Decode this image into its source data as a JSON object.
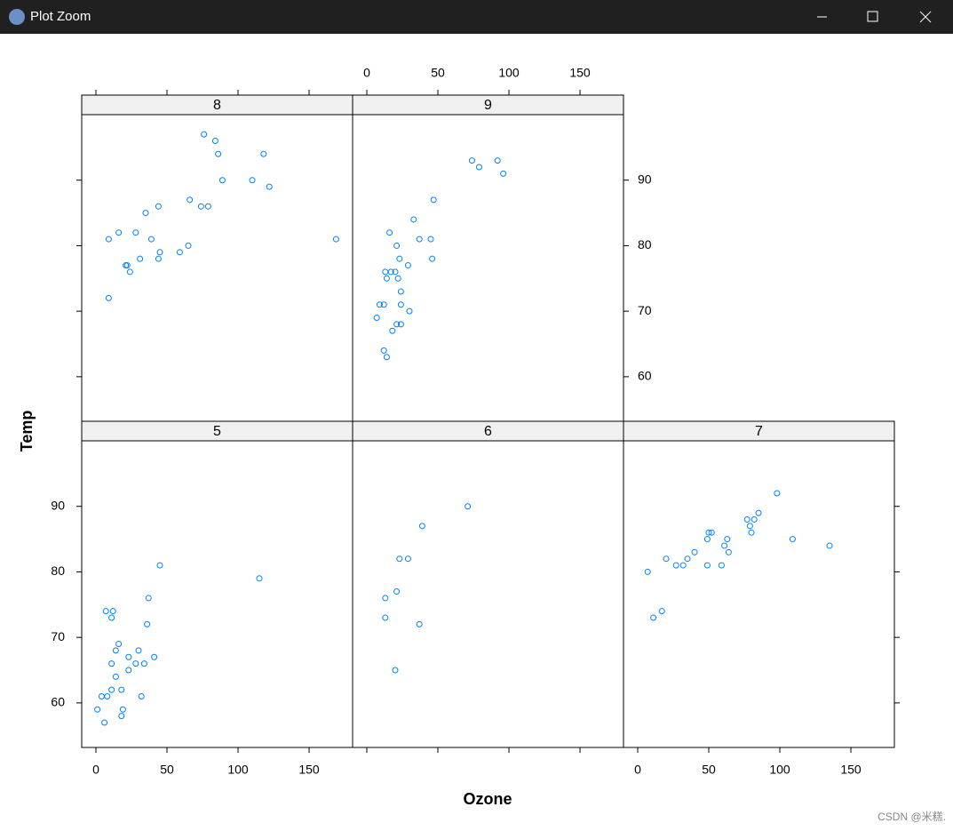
{
  "window": {
    "title": "Plot Zoom",
    "watermark": "CSDN @米糕."
  },
  "chart_data": {
    "type": "scatter",
    "xlabel": "Ozone",
    "ylabel": "Temp",
    "color": "#0080ff",
    "xlim": [
      -10,
      180.6
    ],
    "ylim": [
      53.2,
      100
    ],
    "xticks": [
      0,
      50,
      100,
      150
    ],
    "yticks": [
      60,
      70,
      80,
      90
    ],
    "panels": [
      {
        "title": "5",
        "x": [
          41,
          36,
          12,
          18,
          28,
          23,
          19,
          8,
          7,
          16,
          11,
          14,
          18,
          14,
          34,
          6,
          30,
          11,
          1,
          11,
          4,
          32,
          23,
          45,
          115,
          37
        ],
        "y": [
          67,
          72,
          74,
          62,
          66,
          65,
          59,
          61,
          74,
          69,
          66,
          68,
          58,
          64,
          66,
          57,
          68,
          62,
          59,
          73,
          61,
          61,
          67,
          81,
          79,
          76
        ]
      },
      {
        "title": "6",
        "x": [
          13,
          13,
          20,
          21,
          23,
          29,
          37,
          39,
          71
        ],
        "y": [
          73,
          76,
          65,
          77,
          82,
          82,
          72,
          87,
          90
        ]
      },
      {
        "title": "7",
        "x": [
          7,
          11,
          17,
          20,
          27,
          32,
          35,
          40,
          49,
          49,
          50,
          52,
          59,
          61,
          63,
          64,
          77,
          79,
          80,
          82,
          85,
          98,
          109,
          135
        ],
        "y": [
          80,
          73,
          74,
          82,
          81,
          81,
          82,
          83,
          81,
          85,
          86,
          86,
          81,
          84,
          85,
          83,
          88,
          87,
          86,
          88,
          89,
          92,
          85,
          84
        ]
      },
      {
        "title": "8",
        "x": [
          9,
          9,
          16,
          21,
          22,
          24,
          28,
          31,
          35,
          39,
          44,
          45,
          44,
          59,
          65,
          66,
          74,
          79,
          76,
          84,
          86,
          89,
          110,
          118,
          122,
          169
        ],
        "y": [
          72,
          81,
          82,
          77,
          77,
          76,
          82,
          78,
          85,
          81,
          78,
          79,
          86,
          79,
          80,
          87,
          86,
          86,
          97,
          96,
          94,
          90,
          90,
          94,
          89,
          81
        ]
      },
      {
        "title": "9",
        "x": [
          7,
          9,
          12,
          12,
          14,
          13,
          14,
          17,
          16,
          18,
          20,
          21,
          21,
          22,
          23,
          24,
          24,
          24,
          29,
          30,
          33,
          37,
          45,
          46,
          47,
          74,
          79,
          92,
          96
        ],
        "y": [
          69,
          71,
          71,
          64,
          63,
          76,
          75,
          76,
          82,
          67,
          76,
          80,
          68,
          75,
          78,
          71,
          73,
          68,
          77,
          70,
          84,
          81,
          81,
          78,
          87,
          93,
          92,
          93,
          91
        ]
      }
    ]
  }
}
